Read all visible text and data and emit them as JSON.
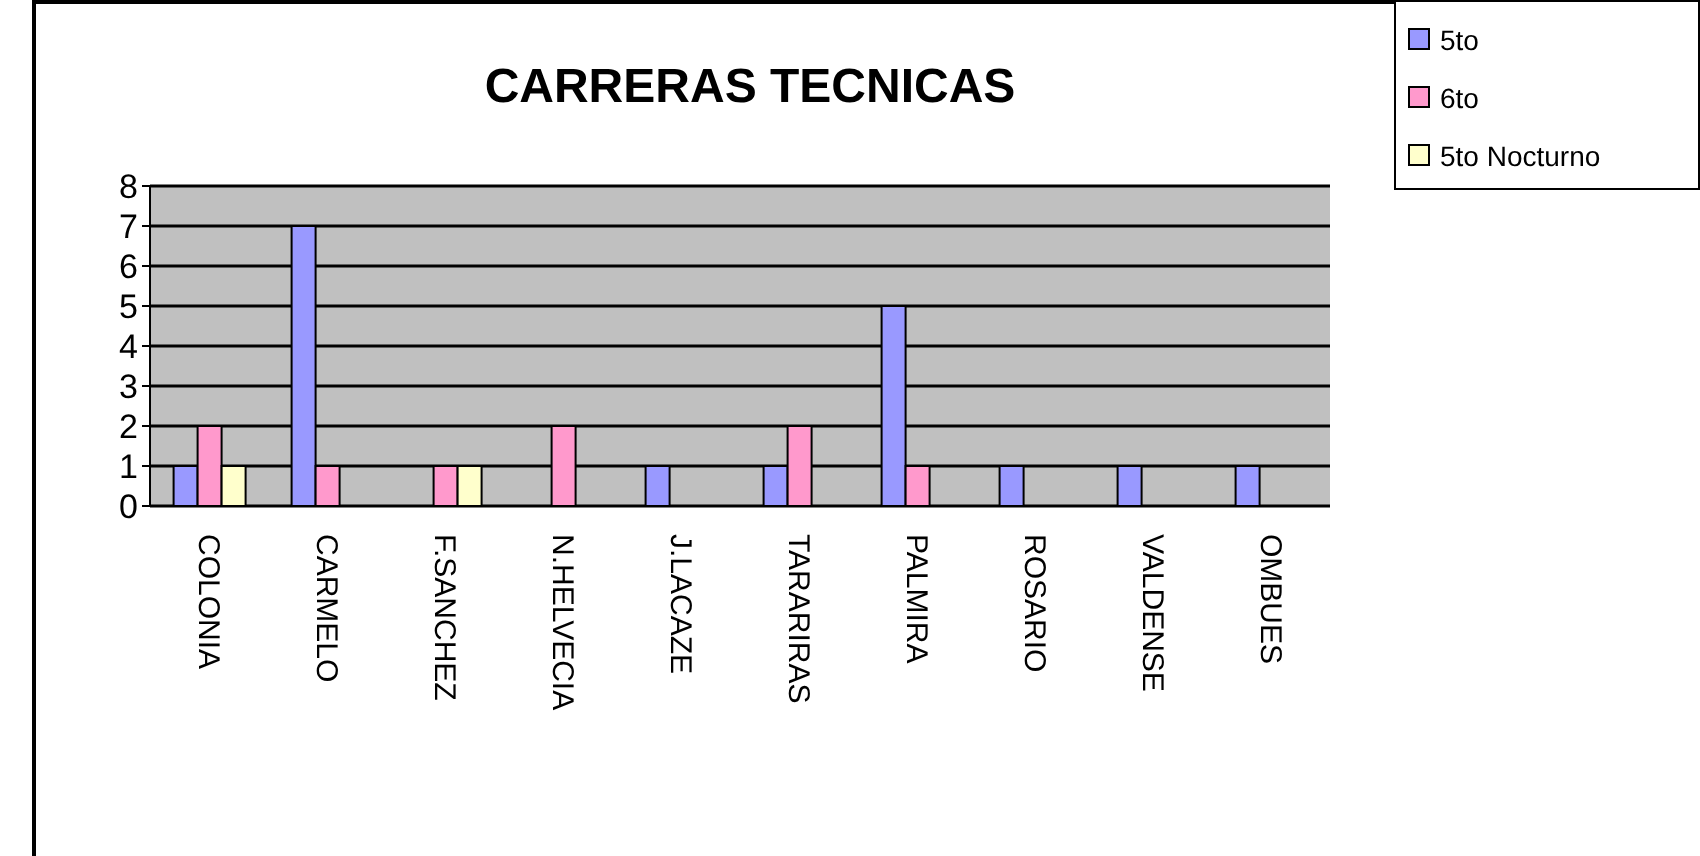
{
  "chart_data": {
    "type": "bar",
    "title": "CARRERAS TECNICAS",
    "categories": [
      "COLONIA",
      "CARMELO",
      "F.SANCHEZ",
      "N.HELVECIA",
      "J.LACAZE",
      "TARARIRAS",
      "PALMIRA",
      "ROSARIO",
      "VALDENSE",
      "OMBUES"
    ],
    "series": [
      {
        "name": "5to",
        "color": "#9999ff",
        "values": [
          1,
          7,
          null,
          null,
          1,
          1,
          5,
          1,
          1,
          1
        ]
      },
      {
        "name": "6to",
        "color": "#ff99cc",
        "values": [
          2,
          1,
          1,
          2,
          null,
          2,
          1,
          null,
          null,
          null
        ]
      },
      {
        "name": "5to Nocturno",
        "color": "#ffffcc",
        "values": [
          1,
          null,
          1,
          null,
          null,
          null,
          null,
          null,
          null,
          null
        ]
      }
    ],
    "ylim": [
      0,
      8
    ],
    "yticks": [
      0,
      1,
      2,
      3,
      4,
      5,
      6,
      7,
      8
    ],
    "grid": "y",
    "legend": "top right"
  }
}
